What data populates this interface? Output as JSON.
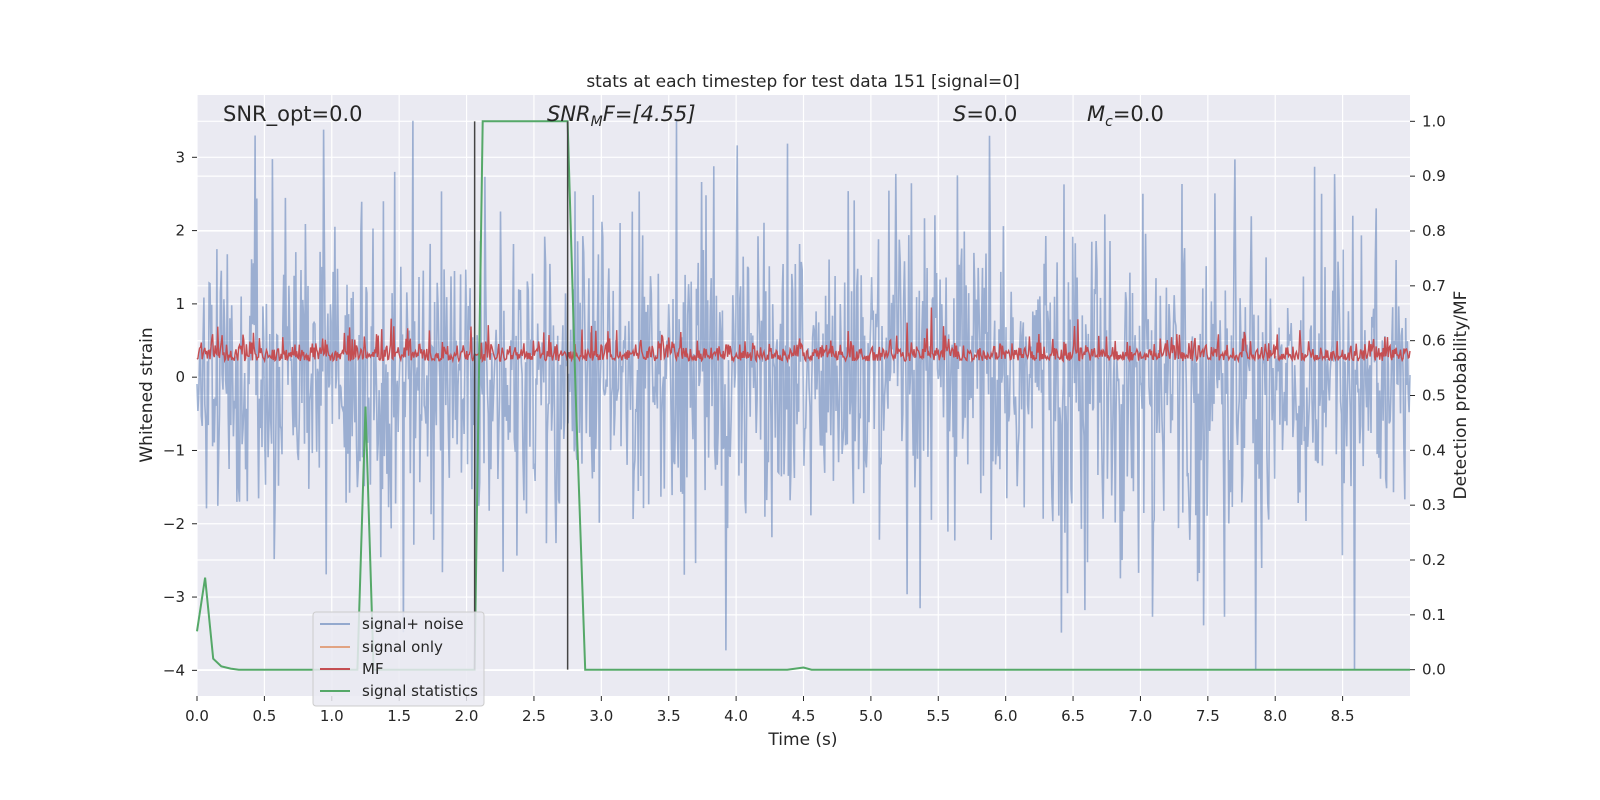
{
  "chart_data": {
    "type": "line",
    "title": "stats at each timestep for test data 151 [signal=0]",
    "xlabel": "Time (s)",
    "ylabel": "Whitened strain",
    "y2label": "Detection probability/MF",
    "xlim": [
      0,
      9
    ],
    "ylim": [
      -4.35,
      3.85
    ],
    "y2lim": [
      -0.048,
      1.048
    ],
    "xticks": [
      "0.0",
      "0.5",
      "1.0",
      "1.5",
      "2.0",
      "2.5",
      "3.0",
      "3.5",
      "4.0",
      "4.5",
      "5.0",
      "5.5",
      "6.0",
      "6.5",
      "7.0",
      "7.5",
      "8.0",
      "8.5"
    ],
    "yticks": [
      "3",
      "2",
      "1",
      "0",
      "−1",
      "−2",
      "−3",
      "−4"
    ],
    "y2ticks": [
      "1.0",
      "0.9",
      "0.8",
      "0.7",
      "0.6",
      "0.5",
      "0.4",
      "0.3",
      "0.2",
      "0.1",
      "0.0"
    ],
    "grid": true,
    "legend_position": "lower-left",
    "colors": {
      "background": "#eaeaf2",
      "noise": "#4c72b0",
      "signal_only": "#dd8452",
      "mf": "#c44e52",
      "stats": "#55a868",
      "vline": "#444444"
    },
    "annotations": {
      "snr_opt": "SNR_opt=0.0",
      "snr_mf_base": "SNR",
      "snr_mf_sub": "M",
      "snr_mf_rest": "F=[4.55]",
      "s_label": "S",
      "s_value": "=0.0",
      "mc_base": "M",
      "mc_sub": "c",
      "mc_value": "=0.0"
    },
    "vertical_lines": [
      2.06,
      2.75
    ],
    "series": [
      {
        "name": "signal+ noise",
        "description_range": [
          -4.0,
          3.5
        ],
        "samples": 1400
      },
      {
        "name": "signal only",
        "values": []
      },
      {
        "name": "MF",
        "description_range": [
          0.0,
          0.95
        ],
        "samples": 1400
      },
      {
        "name": "signal statistics",
        "axis": "right",
        "x": [
          0.0,
          0.06,
          0.12,
          0.18,
          0.25,
          0.31,
          0.5,
          0.8,
          1.0,
          1.12,
          1.19,
          1.25,
          1.31,
          1.38,
          1.5,
          2.0,
          2.06,
          2.12,
          2.5,
          2.75,
          2.81,
          2.88,
          3.0,
          3.5,
          4.0,
          4.38,
          4.5,
          4.56,
          5.0,
          6.0,
          7.0,
          8.0,
          9.0
        ],
        "values": [
          0.07,
          0.168,
          0.02,
          0.006,
          0.002,
          0.0,
          0.0,
          0.0,
          0.0,
          0.0,
          0.0,
          0.48,
          0.0,
          0.0,
          0.0,
          0.0,
          0.0,
          1.0,
          1.0,
          1.0,
          0.5,
          0.0,
          0.0,
          0.0,
          0.0,
          0.0,
          0.004,
          0.0,
          0.0,
          0.0,
          0.0,
          0.0,
          0.0
        ]
      }
    ]
  }
}
